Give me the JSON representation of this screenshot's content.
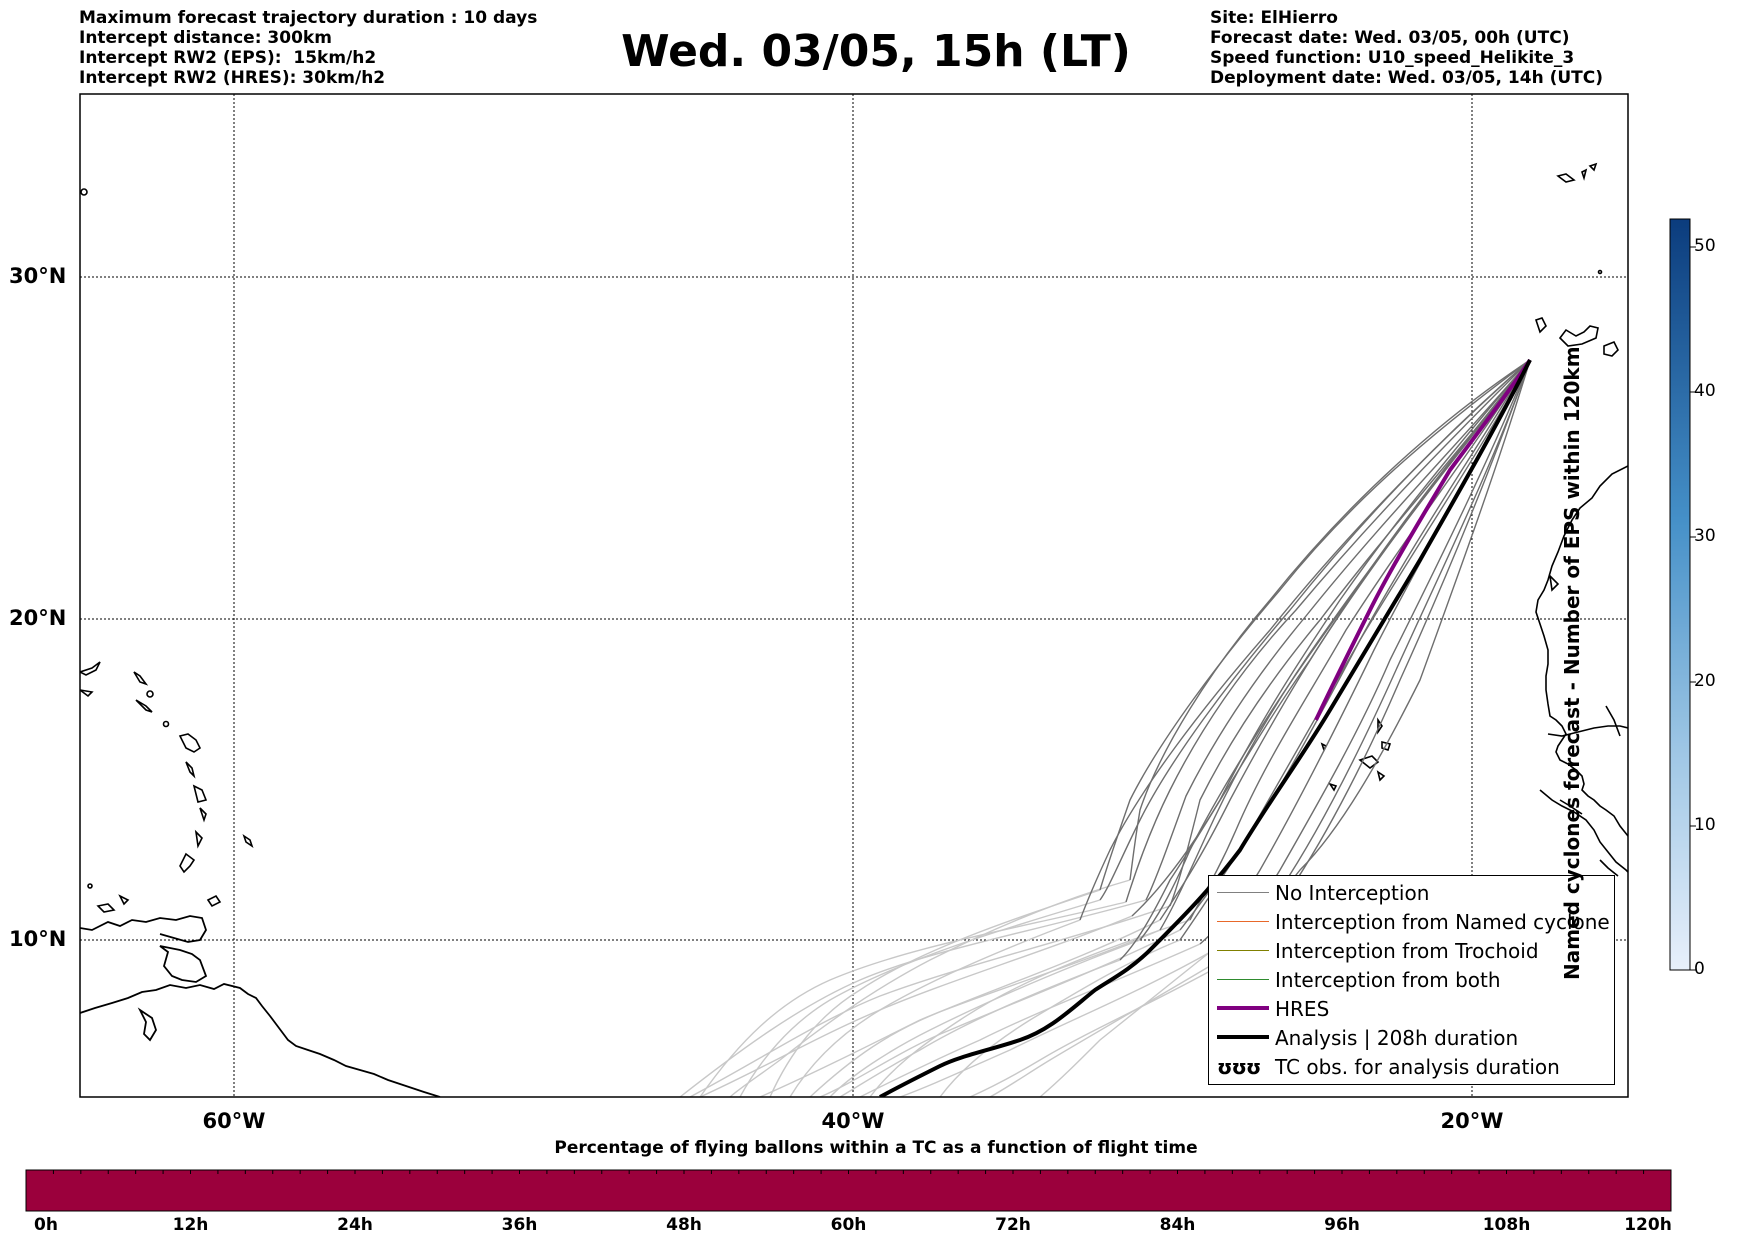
{
  "header": {
    "left_lines": [
      "Maximum forecast trajectory duration : 10 days",
      "Intercept distance: 300km",
      "Intercept RW2 (EPS):  15km/h2",
      "Intercept RW2 (HRES): 30km/h2"
    ],
    "title": "Wed. 03/05, 15h (LT)",
    "right_lines": [
      "Site: ElHierro",
      "Forecast date: Wed. 03/05, 00h (UTC)",
      "Speed function: U10_speed_Helikite_3",
      "Deployment date: Wed. 03/05, 14h (UTC)"
    ]
  },
  "map": {
    "lat_labels": [
      "30°N",
      "20°N",
      "10°N"
    ],
    "lon_labels": [
      "60°W",
      "40°W",
      "20°W"
    ],
    "grid": true
  },
  "legend": {
    "placement": "bottom-right",
    "items": [
      {
        "label": "No Interception",
        "color": "#808080",
        "style": "thin"
      },
      {
        "label": "Interception from Named cyclone",
        "color": "#e8682a",
        "style": "thin"
      },
      {
        "label": "Interception from Trochoid",
        "color": "#808000",
        "style": "thin"
      },
      {
        "label": "Interception from both",
        "color": "#2e8b2e",
        "style": "thin"
      },
      {
        "label": "HRES",
        "color": "#800080",
        "style": "thick"
      },
      {
        "label": "Analysis | 208h duration",
        "color": "#000000",
        "style": "thick"
      },
      {
        "label": "TC obs. for analysis duration",
        "color": "#000000",
        "style": "symbol",
        "symbol": "ʊʊʊ"
      }
    ]
  },
  "colorbar_vertical": {
    "label": "Named cyclones forecast - Number of EPS within 120km",
    "ticks": [
      "50",
      "40",
      "30",
      "20",
      "10",
      "0"
    ],
    "color_low": "#e8f0fb",
    "color_high": "#0b3c7d"
  },
  "colorbar_horizontal": {
    "title": "Percentage of flying ballons within a TC as a function of flight time",
    "ticks": [
      "0h",
      "12h",
      "24h",
      "36h",
      "48h",
      "60h",
      "72h",
      "84h",
      "96h",
      "108h",
      "120h"
    ],
    "color": "#9b003c"
  }
}
